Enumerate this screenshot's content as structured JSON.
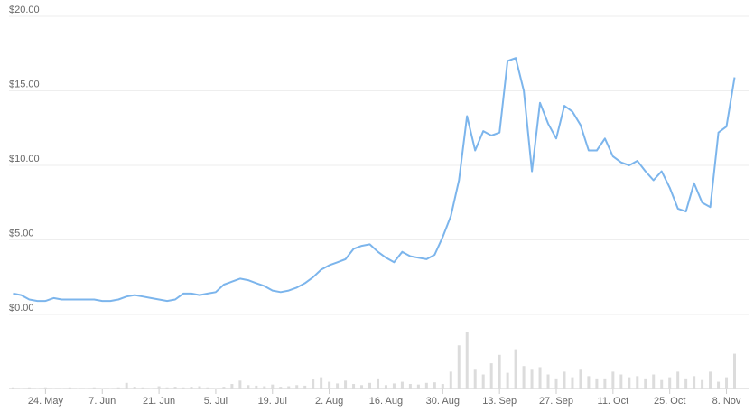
{
  "chart_data": {
    "type": "line",
    "categories": [
      null,
      null,
      null,
      null,
      "24. May",
      null,
      null,
      null,
      null,
      null,
      null,
      "7. Jun",
      null,
      null,
      null,
      null,
      null,
      null,
      "21. Jun",
      null,
      null,
      null,
      null,
      null,
      null,
      "5. Jul",
      null,
      null,
      null,
      null,
      null,
      null,
      "19. Jul",
      null,
      null,
      null,
      null,
      null,
      null,
      "2. Aug",
      null,
      null,
      null,
      null,
      null,
      null,
      "16. Aug",
      null,
      null,
      null,
      null,
      null,
      null,
      "30. Aug",
      null,
      null,
      null,
      null,
      null,
      null,
      "13. Sep",
      null,
      null,
      null,
      null,
      null,
      null,
      "27. Sep",
      null,
      null,
      null,
      null,
      null,
      null,
      "11. Oct",
      null,
      null,
      null,
      null,
      null,
      null,
      "25. Oct",
      null,
      null,
      null,
      null,
      null,
      null,
      "8. Nov",
      null
    ],
    "series": [
      {
        "color": "#7cb5ec",
        "values": [
          1.4,
          1.3,
          1.0,
          0.9,
          0.9,
          1.1,
          1.0,
          1.0,
          1.0,
          1.0,
          1.0,
          0.9,
          0.9,
          1.0,
          1.2,
          1.3,
          1.2,
          1.1,
          1.0,
          0.9,
          1.0,
          1.4,
          1.4,
          1.3,
          1.4,
          1.5,
          2.0,
          2.2,
          2.4,
          2.3,
          2.1,
          1.9,
          1.6,
          1.5,
          1.6,
          1.8,
          2.1,
          2.5,
          3.0,
          3.3,
          3.5,
          3.7,
          4.4,
          4.6,
          4.7,
          4.2,
          3.8,
          3.5,
          4.2,
          3.9,
          3.8,
          3.7,
          4.0,
          5.2,
          6.6,
          9.0,
          13.3,
          11.0,
          12.3,
          12.0,
          12.2,
          17.0,
          17.2,
          15.0,
          9.6,
          14.2,
          12.8,
          11.8,
          14.0,
          13.6,
          12.7,
          11.0,
          11.0,
          11.8,
          10.6,
          10.2,
          10.0,
          10.3,
          9.6,
          9.0,
          9.6,
          8.5,
          7.1,
          6.9,
          8.8,
          7.5,
          7.2,
          12.2,
          12.6,
          15.9
        ]
      },
      {
        "color": "#dcdcdc",
        "axis": "y2",
        "values": [
          2,
          1,
          2,
          1,
          2,
          1,
          1,
          2,
          1,
          1,
          2,
          1,
          1,
          2,
          10,
          3,
          2,
          1,
          4,
          2,
          3,
          2,
          3,
          4,
          2,
          1,
          3,
          8,
          14,
          6,
          5,
          4,
          7,
          3,
          4,
          6,
          5,
          16,
          20,
          12,
          9,
          14,
          8,
          6,
          10,
          18,
          6,
          9,
          12,
          8,
          7,
          10,
          11,
          8,
          30,
          77,
          100,
          35,
          25,
          45,
          60,
          28,
          70,
          40,
          35,
          38,
          25,
          18,
          30,
          20,
          35,
          22,
          18,
          18,
          30,
          25,
          20,
          22,
          18,
          25,
          15,
          20,
          30,
          18,
          22,
          15,
          30,
          12,
          20,
          62
        ]
      }
    ],
    "ylim": [
      0,
      20
    ],
    "yticks": [
      {
        "value": 0,
        "label": "$0.00"
      },
      {
        "value": 5,
        "label": "$5.00"
      },
      {
        "value": 10,
        "label": "$10.00"
      },
      {
        "value": 15,
        "label": "$15.00"
      },
      {
        "value": 20,
        "label": "$20.00"
      }
    ],
    "y2lim": [
      0,
      100
    ],
    "grid": true
  }
}
